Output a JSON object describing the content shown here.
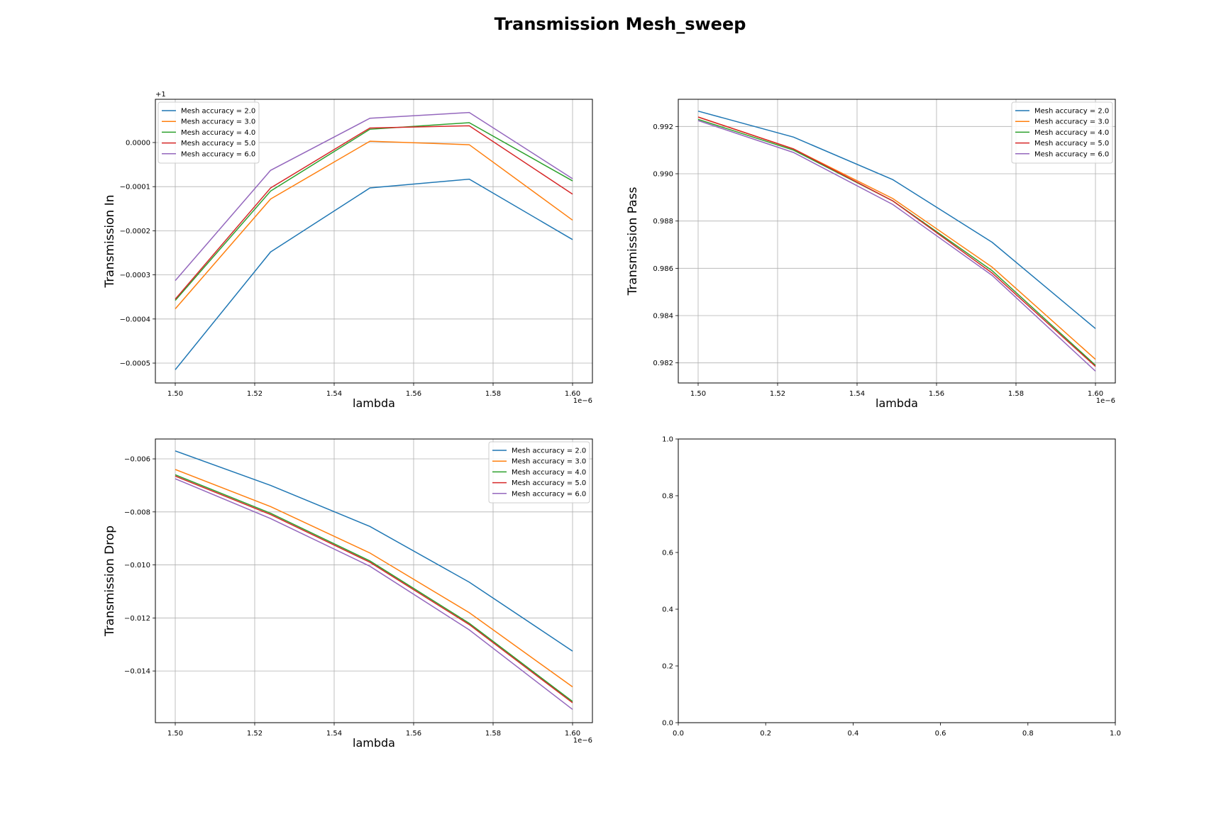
{
  "figure": {
    "title": "Transmission Mesh_sweep"
  },
  "colors": {
    "series": [
      "#1f77b4",
      "#ff7f0e",
      "#2ca02c",
      "#d62728",
      "#9467bd"
    ],
    "grid": "#b0b0b0",
    "axes": "#000000",
    "legend_border": "#cccccc"
  },
  "chart_data": [
    {
      "type": "line",
      "id": "in",
      "title": "",
      "xlabel": "lambda",
      "ylabel": "Transmission In",
      "x_offset_text": "1e−6",
      "y_offset_text": "+1",
      "xlim": [
        1.495,
        1.605
      ],
      "ylim": [
        -0.000545,
        9.8e-05
      ],
      "xticks": [
        1.5,
        1.52,
        1.54,
        1.56,
        1.58,
        1.6
      ],
      "xtick_labels": [
        "1.50",
        "1.52",
        "1.54",
        "1.56",
        "1.58",
        "1.60"
      ],
      "yticks": [
        0.0,
        -0.0001,
        -0.0002,
        -0.0003,
        -0.0004,
        -0.0005
      ],
      "ytick_labels": [
        "0.0000",
        "−0.0001",
        "−0.0002",
        "−0.0003",
        "−0.0004",
        "−0.0005"
      ],
      "grid": true,
      "legend_position": "upper left",
      "x": [
        1.5,
        1.524,
        1.549,
        1.574,
        1.6
      ],
      "series": [
        {
          "name": "Mesh accuracy = 2.0",
          "values": [
            -0.000515,
            -0.000248,
            -0.000103,
            -8.3e-05,
            -0.00022
          ]
        },
        {
          "name": "Mesh accuracy = 3.0",
          "values": [
            -0.000377,
            -0.000128,
            3e-06,
            -5e-06,
            -0.000176
          ]
        },
        {
          "name": "Mesh accuracy = 4.0",
          "values": [
            -0.000358,
            -0.00011,
            3e-05,
            4.5e-05,
            -8.7e-05
          ]
        },
        {
          "name": "Mesh accuracy = 5.0",
          "values": [
            -0.000355,
            -0.000103,
            3.3e-05,
            3.8e-05,
            -0.000117
          ]
        },
        {
          "name": "Mesh accuracy = 6.0",
          "values": [
            -0.000313,
            -6.3e-05,
            5.5e-05,
            6.8e-05,
            -8.2e-05
          ]
        }
      ]
    },
    {
      "type": "line",
      "id": "pass",
      "title": "",
      "xlabel": "lambda",
      "ylabel": "Transmission Pass",
      "x_offset_text": "1e−6",
      "y_offset_text": "",
      "xlim": [
        1.495,
        1.605
      ],
      "ylim": [
        0.98115,
        0.99315
      ],
      "xticks": [
        1.5,
        1.52,
        1.54,
        1.56,
        1.58,
        1.6
      ],
      "xtick_labels": [
        "1.50",
        "1.52",
        "1.54",
        "1.56",
        "1.58",
        "1.60"
      ],
      "yticks": [
        0.982,
        0.984,
        0.986,
        0.988,
        0.99,
        0.992
      ],
      "ytick_labels": [
        "0.982",
        "0.984",
        "0.986",
        "0.988",
        "0.990",
        "0.992"
      ],
      "grid": true,
      "legend_position": "upper right",
      "x": [
        1.5,
        1.524,
        1.549,
        1.574,
        1.6
      ],
      "series": [
        {
          "name": "Mesh accuracy = 2.0",
          "values": [
            0.99265,
            0.99155,
            0.98975,
            0.9871,
            0.98345
          ]
        },
        {
          "name": "Mesh accuracy = 3.0",
          "values": [
            0.9924,
            0.99105,
            0.98895,
            0.98605,
            0.98215
          ]
        },
        {
          "name": "Mesh accuracy = 4.0",
          "values": [
            0.9923,
            0.991,
            0.98885,
            0.9859,
            0.9819
          ]
        },
        {
          "name": "Mesh accuracy = 5.0",
          "values": [
            0.9924,
            0.99105,
            0.98885,
            0.9858,
            0.98185
          ]
        },
        {
          "name": "Mesh accuracy = 6.0",
          "values": [
            0.99225,
            0.9909,
            0.9887,
            0.9857,
            0.98165
          ]
        }
      ]
    },
    {
      "type": "line",
      "id": "drop",
      "title": "",
      "xlabel": "lambda",
      "ylabel": "Transmission Drop",
      "x_offset_text": "1e−6",
      "y_offset_text": "",
      "xlim": [
        1.495,
        1.605
      ],
      "ylim": [
        -0.01595,
        -0.00525
      ],
      "xticks": [
        1.5,
        1.52,
        1.54,
        1.56,
        1.58,
        1.6
      ],
      "xtick_labels": [
        "1.50",
        "1.52",
        "1.54",
        "1.56",
        "1.58",
        "1.60"
      ],
      "yticks": [
        -0.006,
        -0.008,
        -0.01,
        -0.012,
        -0.014
      ],
      "ytick_labels": [
        "−0.006",
        "−0.008",
        "−0.010",
        "−0.012",
        "−0.014"
      ],
      "grid": true,
      "legend_position": "upper right",
      "x": [
        1.5,
        1.524,
        1.549,
        1.574,
        1.6
      ],
      "series": [
        {
          "name": "Mesh accuracy = 2.0",
          "values": [
            -0.0057,
            -0.007,
            -0.00855,
            -0.01065,
            -0.01325
          ]
        },
        {
          "name": "Mesh accuracy = 3.0",
          "values": [
            -0.0064,
            -0.0078,
            -0.00955,
            -0.0118,
            -0.0146
          ]
        },
        {
          "name": "Mesh accuracy = 4.0",
          "values": [
            -0.0066,
            -0.00805,
            -0.00985,
            -0.0122,
            -0.01515
          ]
        },
        {
          "name": "Mesh accuracy = 5.0",
          "values": [
            -0.00665,
            -0.0081,
            -0.0099,
            -0.01225,
            -0.0152
          ]
        },
        {
          "name": "Mesh accuracy = 6.0",
          "values": [
            -0.00675,
            -0.00825,
            -0.01005,
            -0.01245,
            -0.01545
          ]
        }
      ]
    },
    {
      "type": "line",
      "id": "empty",
      "title": "",
      "xlabel": "",
      "ylabel": "",
      "x_offset_text": "",
      "y_offset_text": "",
      "xlim": [
        0.0,
        1.0
      ],
      "ylim": [
        0.0,
        1.0
      ],
      "xticks": [
        0.0,
        0.2,
        0.4,
        0.6,
        0.8,
        1.0
      ],
      "xtick_labels": [
        "0.0",
        "0.2",
        "0.4",
        "0.6",
        "0.8",
        "1.0"
      ],
      "yticks": [
        0.0,
        0.2,
        0.4,
        0.6,
        0.8,
        1.0
      ],
      "ytick_labels": [
        "0.0",
        "0.2",
        "0.4",
        "0.6",
        "0.8",
        "1.0"
      ],
      "grid": false,
      "legend_position": "none",
      "x": [],
      "series": []
    }
  ]
}
